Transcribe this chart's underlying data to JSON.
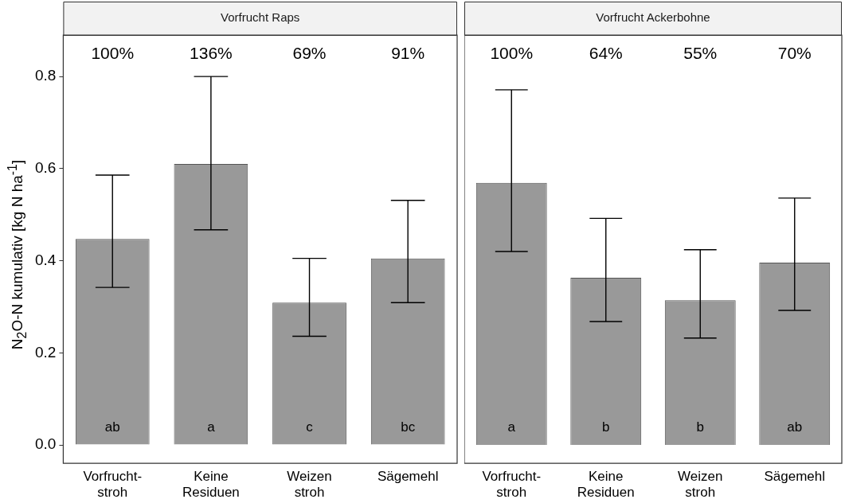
{
  "chart_data": [
    {
      "type": "bar",
      "title": "Vorfrucht Raps",
      "ylabel": "N$_{2}$O-N kumulativ [kg N ha$^{-1}$]",
      "categories": [
        "Vorfrucht-\nstroh",
        "Keine\nResiduen",
        "Weizen\nstroh",
        "Sägemehl"
      ],
      "values": [
        0.447,
        0.61,
        0.309,
        0.405
      ],
      "color": "#999999",
      "errors": [
        [
          0.342,
          0.586
        ],
        [
          0.467,
          0.8
        ],
        [
          0.236,
          0.405
        ],
        [
          0.309,
          0.531
        ]
      ],
      "ylim": [
        -0.04,
        0.89
      ],
      "yticks": [
        {
          "value": 0,
          "label": "0.0"
        },
        {
          "value": 0.2,
          "label": "0.2"
        },
        {
          "value": 0.4,
          "label": "0.4"
        },
        {
          "value": 0.6,
          "label": "0.6"
        },
        {
          "value": 0.8,
          "label": "0.8"
        }
      ],
      "annotations": [
        "100%",
        "136%",
        "69%",
        "91%",
        "ab",
        "a",
        "c",
        "bc"
      ]
    },
    {
      "type": "bar",
      "title": "Vorfrucht Ackerbohne",
      "categories": [
        "Vorfrucht-\nstroh",
        "Keine\nResiduen",
        "Weizen\nstroh",
        "Sägemehl"
      ],
      "values": [
        0.569,
        0.363,
        0.314,
        0.396
      ],
      "color": "#999999",
      "errors": [
        [
          0.42,
          0.771
        ],
        [
          0.268,
          0.492
        ],
        [
          0.232,
          0.424
        ],
        [
          0.292,
          0.536
        ]
      ],
      "ylim": [
        -0.04,
        0.89
      ],
      "tick_labels": "x",
      "annotations": [
        "100%",
        "64%",
        "55%",
        "70%",
        "a",
        "b",
        "b",
        "ab"
      ]
    }
  ]
}
